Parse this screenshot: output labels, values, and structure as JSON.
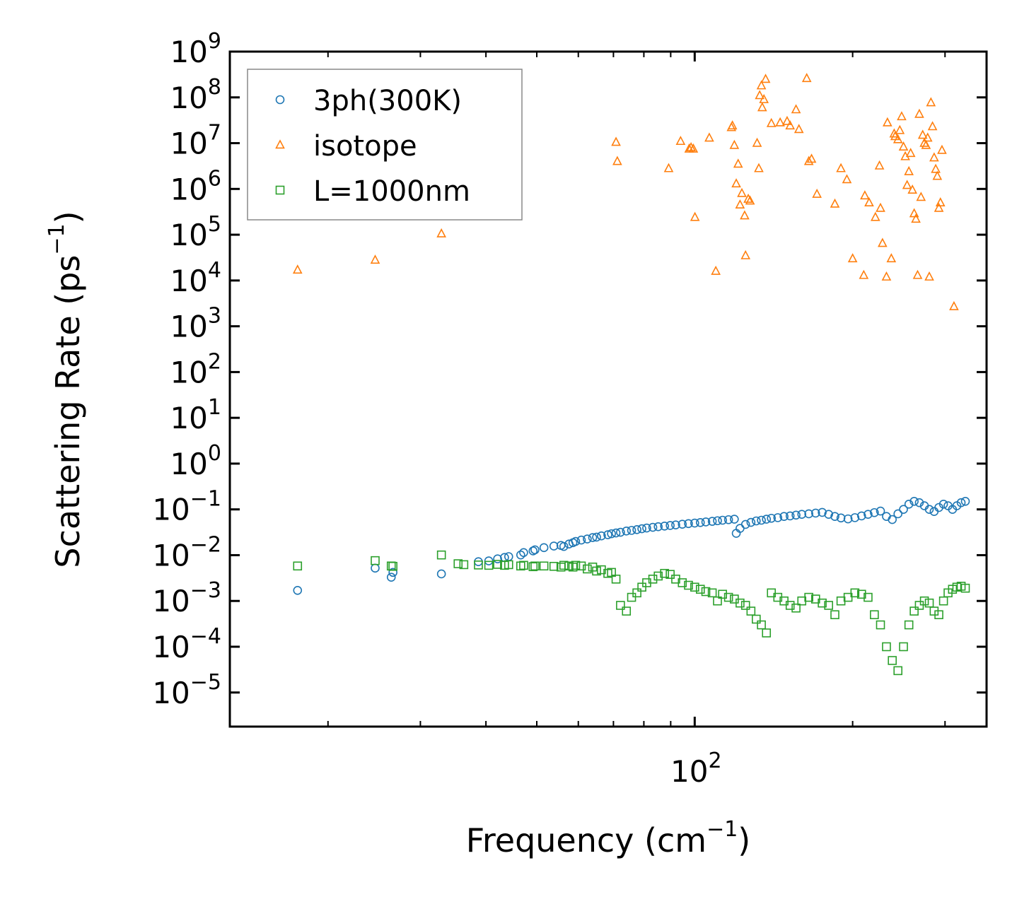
{
  "chart_data": {
    "type": "scatter",
    "xscale": "log",
    "yscale": "log",
    "xlim": [
      13,
      360
    ],
    "ylim": [
      1.8e-06,
      1000000000
    ],
    "xlabel": "Frequency (cm⁻¹)",
    "ylabel": "Scattering Rate (ps⁻¹)",
    "xlabel_parts": {
      "main": "Frequency (cm",
      "sup": "−1",
      "end": ")"
    },
    "ylabel_parts": {
      "main": "Scattering Rate (ps",
      "sup": "−1",
      "end": ")"
    },
    "x_major_ticks": [
      {
        "value": 100,
        "base": "10",
        "exp": "2"
      }
    ],
    "x_minor_ticks": [
      20,
      30,
      40,
      50,
      60,
      70,
      80,
      90,
      200,
      300
    ],
    "y_ticks": [
      {
        "value": 1e-05,
        "base": "10",
        "exp": "−5"
      },
      {
        "value": 0.0001,
        "base": "10",
        "exp": "−4"
      },
      {
        "value": 0.001,
        "base": "10",
        "exp": "−3"
      },
      {
        "value": 0.01,
        "base": "10",
        "exp": "−2"
      },
      {
        "value": 0.1,
        "base": "10",
        "exp": "−1"
      },
      {
        "value": 1,
        "base": "10",
        "exp": "0"
      },
      {
        "value": 10,
        "base": "10",
        "exp": "1"
      },
      {
        "value": 100,
        "base": "10",
        "exp": "2"
      },
      {
        "value": 1000,
        "base": "10",
        "exp": "3"
      },
      {
        "value": 10000,
        "base": "10",
        "exp": "4"
      },
      {
        "value": 100000,
        "base": "10",
        "exp": "5"
      },
      {
        "value": 1000000,
        "base": "10",
        "exp": "6"
      },
      {
        "value": 10000000,
        "base": "10",
        "exp": "7"
      },
      {
        "value": 100000000,
        "base": "10",
        "exp": "8"
      },
      {
        "value": 1000000000,
        "base": "10",
        "exp": "9"
      }
    ],
    "legend_position": "top-left",
    "series": [
      {
        "name": "3ph(300K)",
        "marker": "circle",
        "color": "#1f77b4",
        "x": [
          17.5,
          24.6,
          26.4,
          26.6,
          32.9,
          38.7,
          40.5,
          42.1,
          43.4,
          44.2,
          46.6,
          47.2,
          49.2,
          49.6,
          51.6,
          53.9,
          55.6,
          56.3,
          57.6,
          58.6,
          59.3,
          60.8,
          62.4,
          63.9,
          65.0,
          66.4,
          68.3,
          69.4,
          70.8,
          72.2,
          74.1,
          75.8,
          77.6,
          79.3,
          81.0,
          83.2,
          85.2,
          87.6,
          89.8,
          92.0,
          94.7,
          97.3,
          100.0,
          102.5,
          105.0,
          108.0,
          110.5,
          113.0,
          116.0,
          119.0,
          120.0,
          122.0,
          125.0,
          128.0,
          131.0,
          134.0,
          137.0,
          140.0,
          144.0,
          148.0,
          152.0,
          156.0,
          160.0,
          165.0,
          170.0,
          175.0,
          180.0,
          185.0,
          190.0,
          196.0,
          202.0,
          208.0,
          214.0,
          220.0,
          226.0,
          232.0,
          238.0,
          244.0,
          250.0,
          256.0,
          262.0,
          268.0,
          274.0,
          280.0,
          286.0,
          292.0,
          298.0,
          304.0,
          310.0,
          316.0,
          322.0,
          328.0
        ],
        "y": [
          0.0017,
          0.0052,
          0.0033,
          0.0042,
          0.0039,
          0.0072,
          0.0075,
          0.0083,
          0.0089,
          0.0093,
          0.0101,
          0.0114,
          0.0124,
          0.0131,
          0.0146,
          0.0158,
          0.0163,
          0.0155,
          0.0175,
          0.0187,
          0.0199,
          0.0214,
          0.0226,
          0.0242,
          0.0248,
          0.0264,
          0.0279,
          0.0294,
          0.0305,
          0.0316,
          0.0337,
          0.0348,
          0.0361,
          0.0378,
          0.0392,
          0.0406,
          0.0419,
          0.0432,
          0.0446,
          0.0458,
          0.0474,
          0.0489,
          0.0502,
          0.0516,
          0.0532,
          0.0548,
          0.0565,
          0.058,
          0.0596,
          0.0611,
          0.03,
          0.0385,
          0.047,
          0.052,
          0.056,
          0.058,
          0.061,
          0.064,
          0.066,
          0.07,
          0.072,
          0.075,
          0.078,
          0.08,
          0.083,
          0.086,
          0.078,
          0.07,
          0.065,
          0.062,
          0.066,
          0.072,
          0.078,
          0.085,
          0.092,
          0.07,
          0.06,
          0.08,
          0.1,
          0.13,
          0.15,
          0.14,
          0.12,
          0.1,
          0.09,
          0.11,
          0.13,
          0.12,
          0.1,
          0.12,
          0.14,
          0.15
        ]
      },
      {
        "name": "isotope",
        "marker": "triangle",
        "color": "#ff7f0e",
        "x": [
          17.5,
          24.6,
          32.9,
          70.8,
          71.2,
          89.2,
          94.0,
          97.6,
          98.4,
          99.4,
          100.1,
          106.6,
          109.7,
          117.5,
          118.0,
          119.0,
          120.0,
          121.0,
          122.0,
          123.0,
          124.5,
          125.0,
          126.5,
          127.5,
          131.5,
          132.5,
          133.0,
          134.0,
          134.5,
          135.5,
          136.5,
          140.0,
          145.5,
          150.0,
          152.0,
          156.0,
          158.0,
          163.5,
          165.0,
          167.0,
          171.0,
          185.0,
          190.0,
          195.0,
          200.0,
          210.0,
          211.0,
          215.0,
          221.0,
          225.0,
          226.0,
          228.0,
          232.0,
          233.0,
          237.0,
          240.0,
          241.0,
          244.0,
          246.0,
          248.0,
          250.0,
          252.0,
          254.0,
          256.0,
          258.0,
          260.0,
          262.0,
          264.0,
          266.0,
          268.0,
          270.0,
          272.0,
          274.0,
          276.0,
          278.0,
          280.0,
          282.0,
          284.0,
          286.0,
          288.0,
          290.0,
          292.0,
          294.0,
          296.0,
          312.0
        ],
        "y": [
          17000,
          28000,
          105000,
          10500000,
          4000000,
          2800000,
          11000000,
          7500000,
          8000000,
          7500000,
          240000,
          13000000,
          16000,
          22000000,
          24000000,
          9000000,
          1300000,
          3500000,
          450000,
          800000,
          260000,
          35000,
          600000,
          550000,
          10000000,
          2800000,
          110000000,
          180000000,
          60000000,
          90000000,
          250000000,
          27000000,
          28000000,
          30000000,
          24000000,
          54000000,
          20000000,
          260000000,
          4000000,
          4500000,
          770000,
          470000,
          2800000,
          1600000,
          30000,
          13000,
          710000,
          500000,
          240000,
          3200000,
          380000,
          65000,
          12000,
          28000000,
          30000,
          16000000,
          14000000,
          12000000,
          19000000,
          38000000,
          8300000,
          5100000,
          1200000,
          2400000,
          6000000,
          950000,
          290000,
          220000,
          13000,
          43000000,
          660000,
          15000000,
          10000000,
          9000000,
          13000000,
          12000,
          77000000,
          23000000,
          4800000,
          2700000,
          1900000,
          380000,
          500000,
          7000000,
          2700
        ]
      },
      {
        "name": "L=1000nm",
        "marker": "square",
        "color": "#2ca02c",
        "x": [
          17.5,
          24.6,
          26.4,
          26.6,
          32.9,
          35.4,
          36.3,
          38.7,
          40.5,
          42.1,
          43.4,
          44.2,
          46.6,
          47.2,
          49.2,
          49.6,
          51.6,
          53.9,
          55.6,
          56.3,
          57.6,
          58.6,
          59.3,
          60.8,
          62.4,
          63.9,
          65.0,
          66.4,
          68.3,
          69.4,
          70.8,
          72.2,
          74.1,
          75.8,
          77.6,
          79.3,
          81.0,
          83.2,
          85.2,
          87.6,
          89.8,
          92.0,
          94.7,
          97.3,
          100.0,
          102.5,
          105.0,
          108.0,
          110.5,
          113.0,
          116.0,
          119.0,
          122.0,
          125.0,
          128.0,
          131.0,
          134.0,
          137.0,
          140.0,
          144.0,
          148.0,
          152.0,
          156.0,
          160.0,
          165.0,
          170.0,
          175.0,
          180.0,
          185.0,
          190.0,
          196.0,
          202.0,
          208.0,
          214.0,
          220.0,
          226.0,
          232.0,
          238.0,
          244.0,
          250.0,
          256.0,
          262.0,
          268.0,
          274.0,
          280.0,
          286.0,
          292.0,
          298.0,
          304.0,
          310.0,
          316.0,
          322.0,
          328.0
        ],
        "y": [
          0.0058,
          0.0076,
          0.0058,
          0.0057,
          0.0101,
          0.0065,
          0.0062,
          0.0061,
          0.006,
          0.0063,
          0.006,
          0.0062,
          0.0058,
          0.006,
          0.0056,
          0.0058,
          0.0058,
          0.0057,
          0.0055,
          0.006,
          0.0058,
          0.0055,
          0.006,
          0.0058,
          0.005,
          0.0055,
          0.0045,
          0.0048,
          0.004,
          0.0042,
          0.003,
          0.0008,
          0.0006,
          0.0012,
          0.0015,
          0.002,
          0.0025,
          0.003,
          0.0035,
          0.004,
          0.0038,
          0.003,
          0.0025,
          0.0022,
          0.002,
          0.0018,
          0.0016,
          0.0015,
          0.001,
          0.0014,
          0.0012,
          0.0011,
          0.0009,
          0.0008,
          0.0006,
          0.0004,
          0.0003,
          0.0002,
          0.0015,
          0.0012,
          0.001,
          0.0008,
          0.0007,
          0.001,
          0.0012,
          0.0011,
          0.0009,
          0.0008,
          0.0005,
          0.001,
          0.0012,
          0.0015,
          0.0014,
          0.0012,
          0.0005,
          0.0003,
          0.0001,
          5e-05,
          3e-05,
          0.0001,
          0.0003,
          0.0006,
          0.0008,
          0.001,
          0.0009,
          0.0006,
          0.0005,
          0.001,
          0.0015,
          0.0018,
          0.002,
          0.0021,
          0.0019
        ]
      }
    ]
  }
}
